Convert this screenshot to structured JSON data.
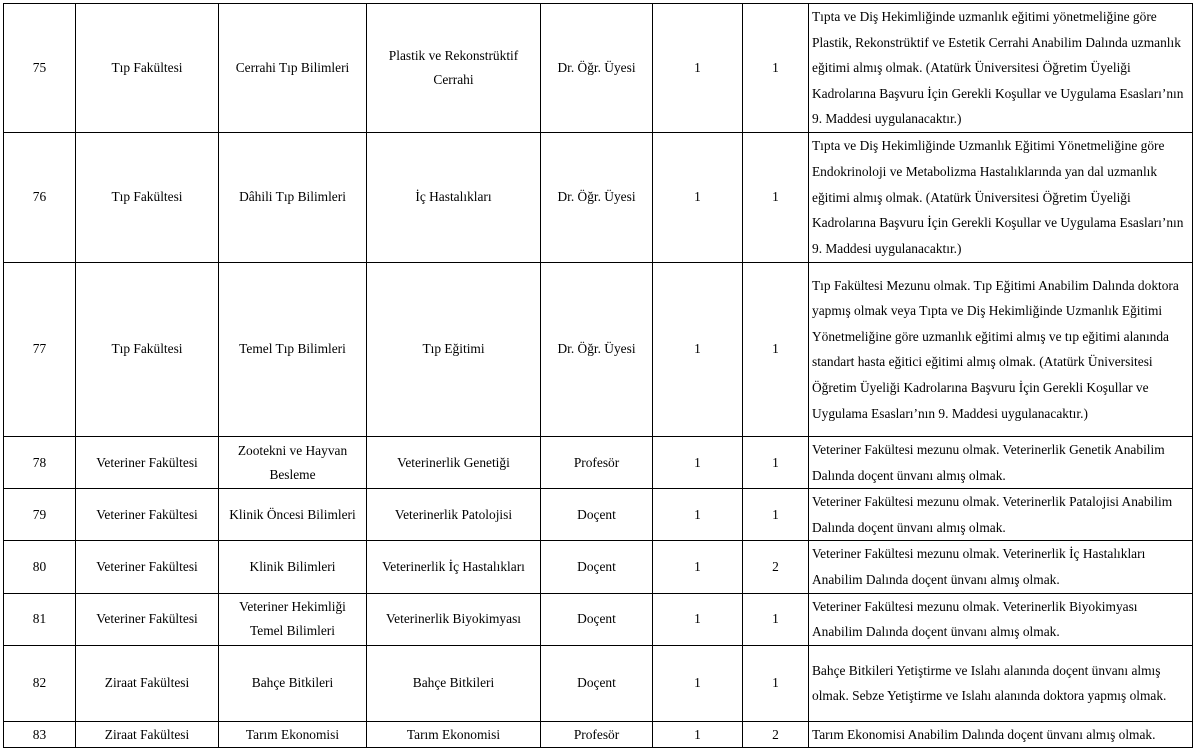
{
  "rows": [
    {
      "no": "75",
      "faculty": "Tıp Fakültesi",
      "department": "Cerrahi Tıp Bilimleri",
      "field": "Plastik ve Rekonstrüktif Cerrahi",
      "title": "Dr. Öğr. Üyesi",
      "degree": "1",
      "count": "1",
      "requirement": "Tıpta ve Diş Hekimliğinde uzmanlık eğitimi yönetmeliğine göre Plastik, Rekonstrüktif ve Estetik Cerrahi Anabilim Dalında uzmanlık eğitimi almış olmak. (Atatürk Üniversitesi Öğretim Üyeliği Kadrolarına Başvuru İçin Gerekli Koşullar ve Uygulama Esasları’nın 9. Maddesi uygulanacaktır.)"
    },
    {
      "no": "76",
      "faculty": "Tıp Fakültesi",
      "department": "Dâhili Tıp Bilimleri",
      "field": "İç Hastalıkları",
      "title": "Dr. Öğr. Üyesi",
      "degree": "1",
      "count": "1",
      "requirement": "Tıpta ve Diş Hekimliğinde Uzmanlık Eğitimi Yönetmeliğine göre Endokrinoloji ve Metabolizma Hastalıklarında yan dal uzmanlık eğitimi almış olmak. (Atatürk Üniversitesi Öğretim Üyeliği Kadrolarına Başvuru İçin Gerekli Koşullar ve Uygulama Esasları’nın 9. Maddesi uygulanacaktır.)"
    },
    {
      "no": "77",
      "faculty": "Tıp Fakültesi",
      "department": "Temel Tıp Bilimleri",
      "field": "Tıp Eğitimi",
      "title": "Dr. Öğr. Üyesi",
      "degree": "1",
      "count": "1",
      "requirement": "Tıp Fakültesi Mezunu olmak. Tıp Eğitimi Anabilim Dalında doktora yapmış olmak veya Tıpta ve Diş Hekimliğinde Uzmanlık Eğitimi Yönetmeliğine göre uzmanlık eğitimi almış ve tıp eğitimi alanında standart hasta eğitici eğitimi almış olmak. (Atatürk Üniversitesi Öğretim Üyeliği Kadrolarına Başvuru İçin Gerekli Koşullar ve Uygulama Esasları’nın 9. Maddesi uygulanacaktır.)"
    },
    {
      "no": "78",
      "faculty": "Veteriner Fakültesi",
      "department": "Zootekni ve Hayvan Besleme",
      "field": "Veterinerlik Genetiği",
      "title": "Profesör",
      "degree": "1",
      "count": "1",
      "requirement": "Veteriner Fakültesi mezunu olmak. Veterinerlik Genetik Anabilim Dalında doçent ünvanı almış olmak."
    },
    {
      "no": "79",
      "faculty": "Veteriner Fakültesi",
      "department": "Klinik Öncesi Bilimleri",
      "field": "Veterinerlik Patolojisi",
      "title": "Doçent",
      "degree": "1",
      "count": "1",
      "requirement": "Veteriner Fakültesi mezunu olmak. Veterinerlik Patalojisi Anabilim Dalında doçent ünvanı almış olmak."
    },
    {
      "no": "80",
      "faculty": "Veteriner Fakültesi",
      "department": "Klinik Bilimleri",
      "field": "Veterinerlik İç Hastalıkları",
      "title": "Doçent",
      "degree": "1",
      "count": "2",
      "requirement": "Veteriner Fakültesi mezunu olmak. Veterinerlik İç Hastalıkları Anabilim Dalında doçent ünvanı almış olmak."
    },
    {
      "no": "81",
      "faculty": "Veteriner Fakültesi",
      "department": "Veteriner Hekimliği Temel Bilimleri",
      "field": "Veterinerlik Biyokimyası",
      "title": "Doçent",
      "degree": "1",
      "count": "1",
      "requirement": "Veteriner Fakültesi mezunu olmak. Veterinerlik Biyokimyası Anabilim Dalında doçent ünvanı almış olmak."
    },
    {
      "no": "82",
      "faculty": "Ziraat Fakültesi",
      "department": "Bahçe Bitkileri",
      "field": "Bahçe Bitkileri",
      "title": "Doçent",
      "degree": "1",
      "count": "1",
      "requirement": "Bahçe Bitkileri Yetiştirme ve Islahı alanında doçent ünvanı almış olmak. Sebze Yetiştirme ve Islahı alanında doktora yapmış olmak."
    },
    {
      "no": "83",
      "faculty": "Ziraat Fakültesi",
      "department": "Tarım Ekonomisi",
      "field": "Tarım Ekonomisi",
      "title": "Profesör",
      "degree": "1",
      "count": "2",
      "requirement": "Tarım Ekonomisi Anabilim Dalında doçent ünvanı almış olmak."
    }
  ]
}
